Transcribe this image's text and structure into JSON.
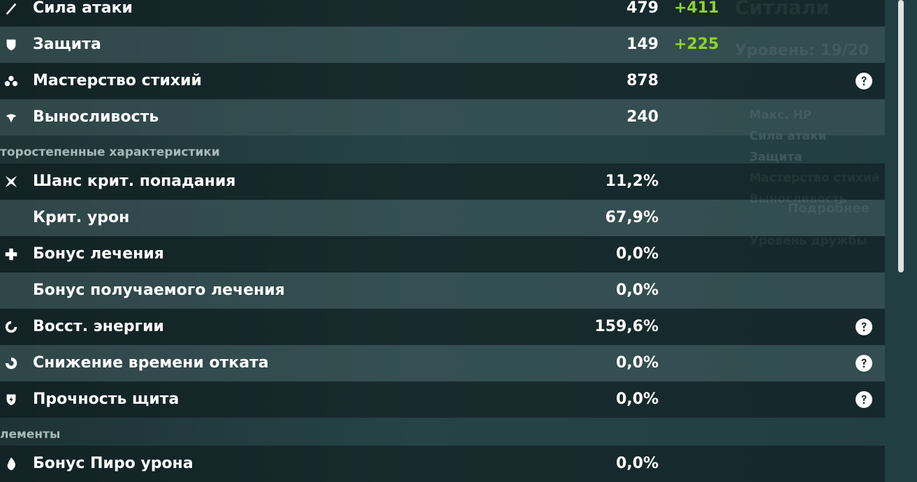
{
  "groups": [
    {
      "rows": [
        {
          "label": "Сила атаки",
          "value": "479",
          "bonus": "+411"
        },
        {
          "label": "Защита",
          "value": "149",
          "bonus": "+225"
        },
        {
          "label": "Мастерство стихий",
          "value": "878",
          "help": true
        },
        {
          "label": "Выносливость",
          "value": "240"
        }
      ]
    },
    {
      "title": "торостепенные характеристики",
      "rows": [
        {
          "label": "Шанс крит. попадания",
          "value": "11,2%"
        },
        {
          "label": "Крит. урон",
          "value": "67,9%"
        },
        {
          "label": "Бонус лечения",
          "value": "0,0%"
        },
        {
          "label": "Бонус получаемого лечения",
          "value": "0,0%"
        },
        {
          "label": "Восст. энергии",
          "value": "159,6%",
          "help": true
        },
        {
          "label": "Снижение времени отката",
          "value": "0,0%",
          "help": true
        },
        {
          "label": "Прочность щита",
          "value": "0,0%",
          "help": true
        }
      ]
    },
    {
      "title": "лементы",
      "rows": [
        {
          "label": "Бонус Пиро урона",
          "value": "0,0%"
        }
      ]
    }
  ],
  "background_panel": {
    "name": "Ситлали",
    "level_label": "Уровень:",
    "level": "19/20",
    "stats": [
      "Макс. HP",
      "Сила атаки",
      "Защита",
      "Мастерство стихий",
      "Выносливость"
    ],
    "button": "Подробнее",
    "friendship": "Уровень дружбы"
  }
}
